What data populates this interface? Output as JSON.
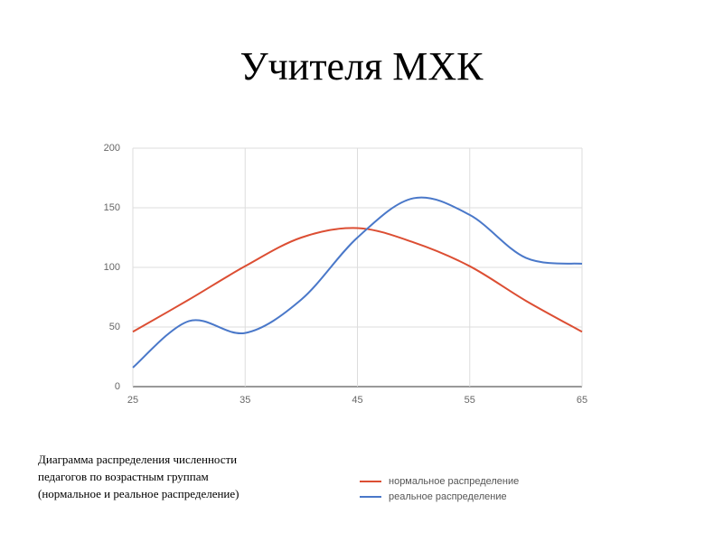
{
  "chart_data": {
    "type": "line",
    "title": "Учителя МХК",
    "caption": [
      "Диаграмма распределения численности",
      "педагогов по возрастным группам",
      "(нормальное и реальное распределение)"
    ],
    "x": [
      25,
      30,
      35,
      40,
      45,
      50,
      55,
      60,
      65
    ],
    "series": [
      {
        "name": "нормальное распределение",
        "color": "#dc4e33",
        "values": [
          46,
          73,
          101,
          125,
          133,
          121,
          101,
          72,
          46
        ]
      },
      {
        "name": "реальное распределение",
        "color": "#4a78c9",
        "values": [
          16,
          55,
          45,
          73,
          125,
          158,
          144,
          108,
          103
        ]
      }
    ],
    "xlim": [
      25,
      65
    ],
    "xticks": [
      25,
      35,
      45,
      55,
      65
    ],
    "ylim": [
      0,
      200
    ],
    "yticks": [
      0,
      50,
      100,
      150,
      200
    ],
    "grid": true,
    "smooth": true,
    "legend": "bottom"
  }
}
